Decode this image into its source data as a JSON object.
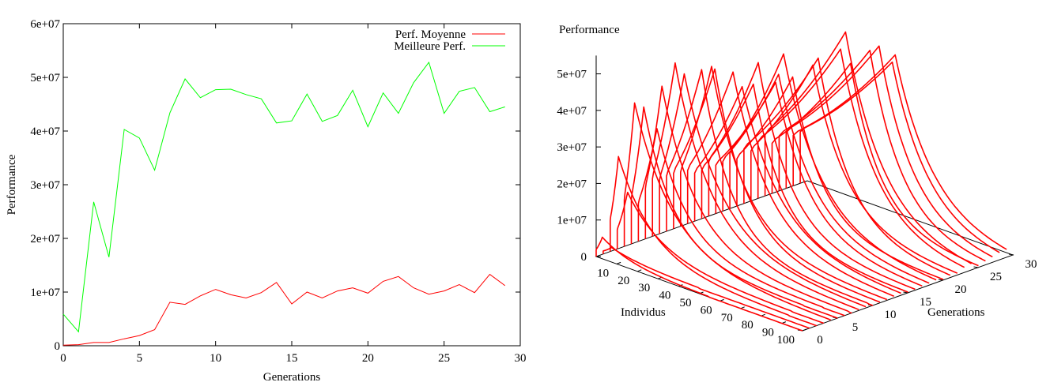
{
  "chart_data": [
    {
      "type": "line",
      "xlabel": "Generations",
      "ylabel": "Performance",
      "xlim": [
        0,
        30
      ],
      "ylim": [
        0,
        60000000
      ],
      "x_ticks": [
        "0",
        "5",
        "10",
        "15",
        "20",
        "25",
        "30"
      ],
      "y_ticks": [
        "0",
        "1e+07",
        "2e+07",
        "3e+07",
        "4e+07",
        "5e+07",
        "6e+07"
      ],
      "legend_position": "top-right",
      "x": [
        0,
        1,
        2,
        3,
        4,
        5,
        6,
        7,
        8,
        9,
        10,
        11,
        12,
        13,
        14,
        15,
        16,
        17,
        18,
        19,
        20,
        21,
        22,
        23,
        24,
        25,
        26,
        27,
        28,
        29
      ],
      "series": [
        {
          "name": "Perf. Moyenne",
          "color": "#ff0000",
          "values": [
            100000,
            200000,
            600000,
            600000,
            1300000,
            1900000,
            3000000,
            8100000,
            7700000,
            9300000,
            10500000,
            9500000,
            8900000,
            9900000,
            11800000,
            7800000,
            10000000,
            8900000,
            10200000,
            10800000,
            9800000,
            12000000,
            12900000,
            10800000,
            9600000,
            10200000,
            11400000,
            9900000,
            13300000,
            11200000
          ]
        },
        {
          "name": "Meilleure Perf.",
          "color": "#00ff00",
          "values": [
            5900000,
            2600000,
            26800000,
            16500000,
            40300000,
            38700000,
            32700000,
            43400000,
            49700000,
            46200000,
            47700000,
            47800000,
            46800000,
            46000000,
            41500000,
            41900000,
            46900000,
            41800000,
            42900000,
            47600000,
            40800000,
            47100000,
            43300000,
            49000000,
            52800000,
            43300000,
            47400000,
            48100000,
            43600000,
            44500000
          ]
        }
      ]
    },
    {
      "type": "surface-3d",
      "zlabel": "Performance",
      "xlabel": "Individus",
      "ylabel": "Generations",
      "x_ticks": [
        "10",
        "20",
        "30",
        "40",
        "50",
        "60",
        "70",
        "80",
        "90",
        "100"
      ],
      "y_ticks": [
        "0",
        "5",
        "10",
        "15",
        "20",
        "25",
        "30"
      ],
      "z_ticks": [
        "0",
        "1e+07",
        "2e+07",
        "3e+07",
        "4e+07",
        "5e+07"
      ],
      "color": "#ff0000",
      "generation_count": 30,
      "individus_max": 100,
      "z_max": 60000000,
      "z_axis_max": 55000000,
      "peak_individus": [
        3,
        4,
        4,
        5,
        5,
        6,
        9,
        8,
        11,
        12,
        17,
        20,
        15,
        22,
        23,
        25,
        24,
        29,
        27,
        26,
        27,
        36,
        30,
        40,
        39,
        38,
        44,
        45,
        48,
        46
      ],
      "peak_performance": [
        5900000,
        2600000,
        26800000,
        16500000,
        40300000,
        38700000,
        32700000,
        43400000,
        49700000,
        46200000,
        47700000,
        47800000,
        46800000,
        46000000,
        41500000,
        41900000,
        46900000,
        41800000,
        42900000,
        47600000,
        40800000,
        47100000,
        43300000,
        49000000,
        52800000,
        43300000,
        47400000,
        48100000,
        43600000,
        44500000
      ]
    }
  ]
}
